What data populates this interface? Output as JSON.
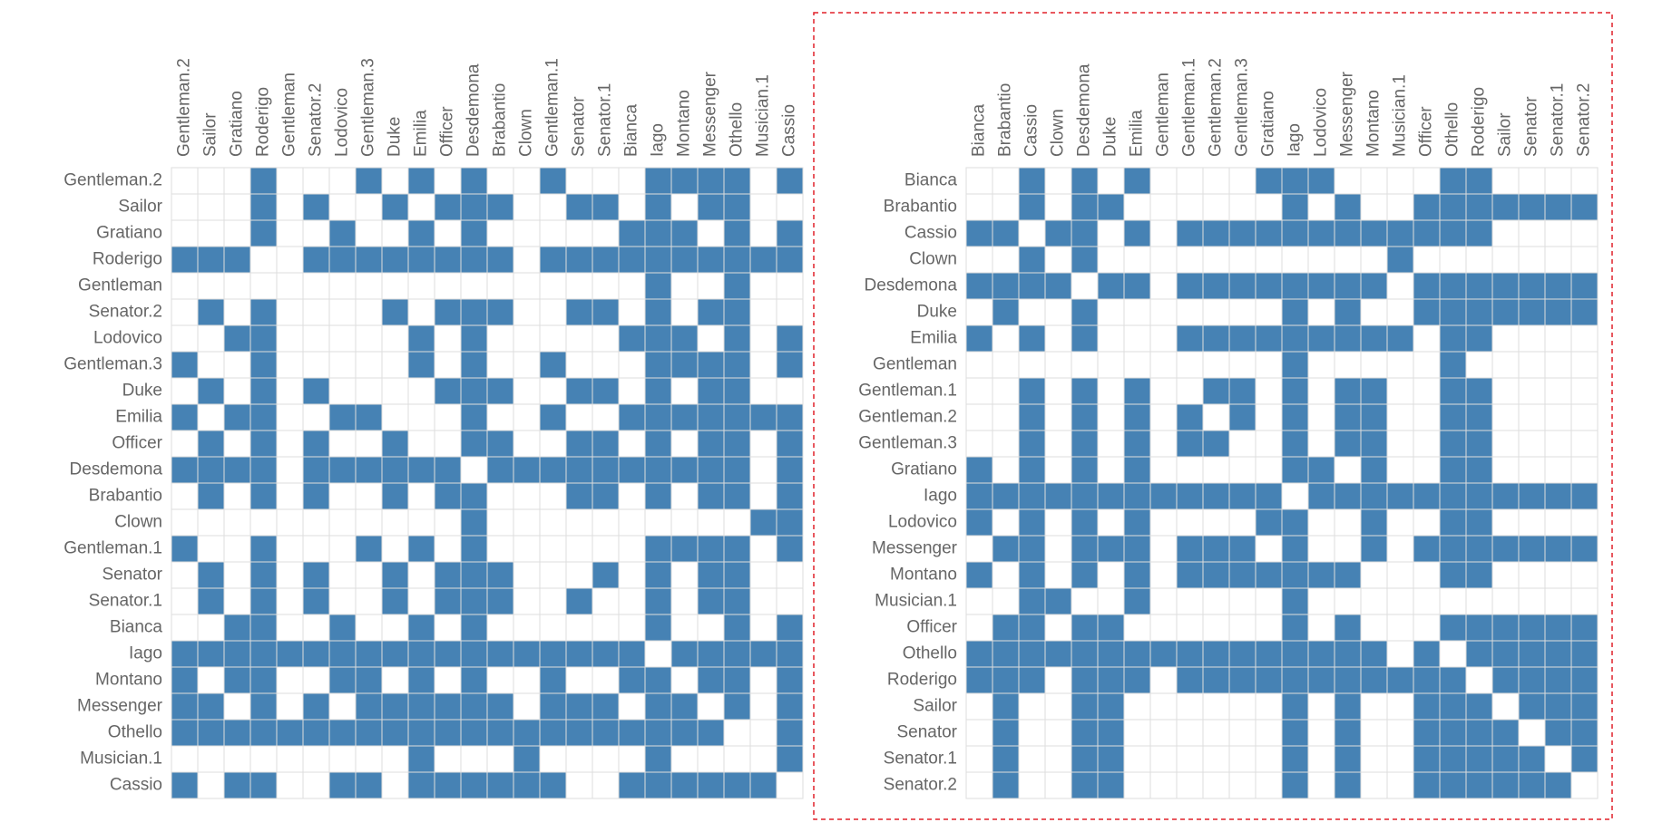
{
  "left_matrix": {
    "labels": [
      "Gentleman.2",
      "Sailor",
      "Gratiano",
      "Roderigo",
      "Gentleman",
      "Senator.2",
      "Lodovico",
      "Gentleman.3",
      "Duke",
      "Emilia",
      "Officer",
      "Desdemona",
      "Brabantio",
      "Clown",
      "Gentleman.1",
      "Senator",
      "Senator.1",
      "Bianca",
      "Iago",
      "Montano",
      "Messenger",
      "Othello",
      "Musician.1",
      "Cassio"
    ]
  },
  "right_matrix": {
    "labels": [
      "Bianca",
      "Brabantio",
      "Cassio",
      "Clown",
      "Desdemona",
      "Duke",
      "Emilia",
      "Gentleman",
      "Gentleman.1",
      "Gentleman.2",
      "Gentleman.3",
      "Gratiano",
      "Iago",
      "Lodovico",
      "Messenger",
      "Montano",
      "Musician.1",
      "Officer",
      "Othello",
      "Roderigo",
      "Sailor",
      "Senator",
      "Senator.1",
      "Senator.2"
    ]
  },
  "matrix": [
    [
      0,
      0,
      1,
      0,
      1,
      0,
      1,
      0,
      0,
      0,
      0,
      1,
      1,
      1,
      0,
      0,
      0,
      0,
      1,
      1,
      0,
      0,
      0,
      0
    ],
    [
      0,
      0,
      1,
      0,
      1,
      1,
      0,
      0,
      0,
      0,
      0,
      0,
      1,
      0,
      1,
      0,
      0,
      1,
      1,
      1,
      1,
      1,
      1,
      1
    ],
    [
      1,
      1,
      0,
      1,
      1,
      0,
      1,
      0,
      1,
      1,
      1,
      1,
      1,
      1,
      1,
      1,
      1,
      1,
      1,
      1,
      0,
      0,
      0,
      0
    ],
    [
      0,
      0,
      1,
      0,
      1,
      0,
      0,
      0,
      0,
      0,
      0,
      0,
      0,
      0,
      0,
      0,
      1,
      0,
      0,
      0,
      0,
      0,
      0,
      0
    ],
    [
      1,
      1,
      1,
      1,
      0,
      1,
      1,
      0,
      1,
      1,
      1,
      1,
      1,
      1,
      1,
      1,
      0,
      1,
      1,
      1,
      1,
      1,
      1,
      1
    ],
    [
      0,
      1,
      0,
      0,
      1,
      0,
      0,
      0,
      0,
      0,
      0,
      0,
      1,
      0,
      1,
      0,
      0,
      1,
      1,
      1,
      1,
      1,
      1,
      1
    ],
    [
      1,
      0,
      1,
      0,
      1,
      0,
      0,
      0,
      1,
      1,
      1,
      1,
      1,
      1,
      1,
      1,
      1,
      0,
      1,
      1,
      0,
      0,
      0,
      0
    ],
    [
      0,
      0,
      0,
      0,
      0,
      0,
      0,
      0,
      0,
      0,
      0,
      0,
      1,
      0,
      0,
      0,
      0,
      0,
      1,
      0,
      0,
      0,
      0,
      0
    ],
    [
      0,
      0,
      1,
      0,
      1,
      0,
      1,
      0,
      0,
      1,
      1,
      0,
      1,
      0,
      1,
      1,
      0,
      0,
      1,
      1,
      0,
      0,
      0,
      0
    ],
    [
      0,
      0,
      1,
      0,
      1,
      0,
      1,
      0,
      1,
      0,
      1,
      0,
      1,
      0,
      1,
      1,
      0,
      0,
      1,
      1,
      0,
      0,
      0,
      0
    ],
    [
      0,
      0,
      1,
      0,
      1,
      0,
      1,
      0,
      1,
      1,
      0,
      0,
      1,
      0,
      1,
      1,
      0,
      0,
      1,
      1,
      0,
      0,
      0,
      0
    ],
    [
      1,
      0,
      1,
      0,
      1,
      0,
      1,
      0,
      0,
      0,
      0,
      0,
      1,
      1,
      0,
      1,
      0,
      0,
      1,
      1,
      0,
      0,
      0,
      0
    ],
    [
      1,
      1,
      1,
      1,
      1,
      1,
      1,
      1,
      1,
      1,
      1,
      1,
      0,
      1,
      1,
      1,
      1,
      1,
      1,
      1,
      1,
      1,
      1,
      1
    ],
    [
      1,
      0,
      1,
      0,
      1,
      0,
      1,
      0,
      0,
      0,
      0,
      1,
      1,
      0,
      0,
      1,
      0,
      0,
      1,
      1,
      0,
      0,
      0,
      0
    ],
    [
      0,
      1,
      1,
      0,
      1,
      1,
      1,
      0,
      1,
      1,
      1,
      0,
      1,
      0,
      0,
      1,
      0,
      1,
      1,
      1,
      1,
      1,
      1,
      1
    ],
    [
      1,
      0,
      1,
      0,
      1,
      0,
      1,
      0,
      1,
      1,
      1,
      1,
      1,
      1,
      1,
      0,
      0,
      0,
      1,
      1,
      0,
      0,
      0,
      0
    ],
    [
      0,
      0,
      1,
      1,
      0,
      0,
      1,
      0,
      0,
      0,
      0,
      0,
      1,
      0,
      0,
      0,
      0,
      0,
      0,
      0,
      0,
      0,
      0,
      0
    ],
    [
      0,
      1,
      1,
      0,
      1,
      1,
      0,
      0,
      0,
      0,
      0,
      0,
      1,
      0,
      1,
      0,
      0,
      0,
      1,
      1,
      1,
      1,
      1,
      1
    ],
    [
      1,
      1,
      1,
      1,
      1,
      1,
      1,
      1,
      1,
      1,
      1,
      1,
      1,
      1,
      1,
      1,
      0,
      1,
      0,
      1,
      1,
      1,
      1,
      1
    ],
    [
      1,
      1,
      1,
      0,
      1,
      1,
      1,
      0,
      1,
      1,
      1,
      1,
      1,
      1,
      1,
      1,
      1,
      1,
      1,
      0,
      1,
      1,
      1,
      1
    ],
    [
      0,
      1,
      0,
      0,
      1,
      1,
      0,
      0,
      0,
      0,
      0,
      0,
      1,
      0,
      1,
      0,
      0,
      1,
      1,
      1,
      0,
      1,
      1,
      1
    ],
    [
      0,
      1,
      0,
      0,
      1,
      1,
      0,
      0,
      0,
      0,
      0,
      0,
      1,
      0,
      1,
      0,
      0,
      1,
      1,
      1,
      1,
      0,
      1,
      1
    ],
    [
      0,
      1,
      0,
      0,
      1,
      1,
      0,
      0,
      0,
      0,
      0,
      0,
      1,
      0,
      1,
      0,
      0,
      1,
      1,
      1,
      1,
      1,
      0,
      1
    ],
    [
      0,
      1,
      0,
      0,
      1,
      1,
      0,
      0,
      0,
      0,
      0,
      0,
      1,
      0,
      1,
      0,
      0,
      1,
      1,
      1,
      1,
      1,
      1,
      0
    ]
  ]
}
